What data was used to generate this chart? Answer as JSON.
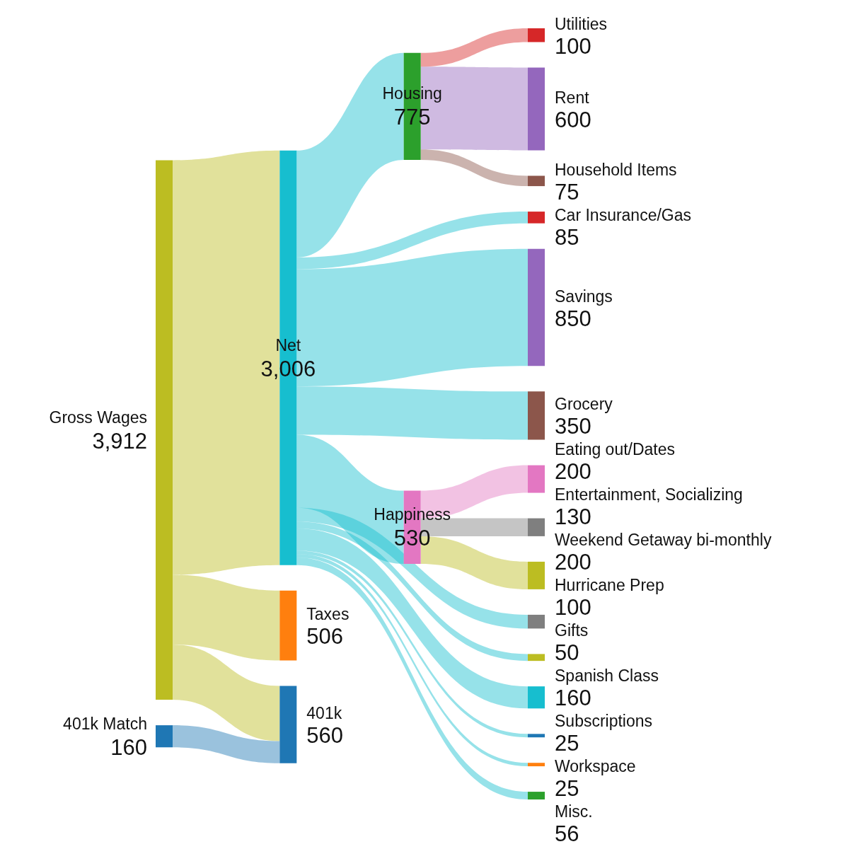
{
  "chart_data": {
    "type": "other",
    "categories": [
      "Gross Wages",
      "401k Match",
      "Net",
      "Taxes",
      "401k",
      "Housing",
      "Happiness",
      "Utilities",
      "Rent",
      "Household Items",
      "Car Insurance/Gas",
      "Savings",
      "Grocery",
      "Eating out/Dates",
      "Entertainment, Socializing",
      "Weekend Getaway bi-monthly",
      "Hurricane Prep",
      "Gifts",
      "Spanish Class",
      "Subscriptions",
      "Workspace",
      "Misc."
    ],
    "values": [
      3912,
      160,
      3006,
      506,
      560,
      775,
      530,
      100,
      600,
      75,
      85,
      850,
      350,
      200,
      130,
      200,
      100,
      50,
      160,
      25,
      25,
      56
    ],
    "value_labels": [
      "3,912",
      "160",
      "3,006",
      "506",
      "560",
      "775",
      "530",
      "100",
      "600",
      "75",
      "85",
      "850",
      "350",
      "200",
      "130",
      "200",
      "100",
      "50",
      "160",
      "25",
      "25",
      "56"
    ],
    "colors": [
      "#bcbd22",
      "#1f77b4",
      "#17becf",
      "#ff7f0e",
      "#1f77b4",
      "#2ca02c",
      "#e377c2",
      "#d62728",
      "#9467bd",
      "#8c564b",
      "#d62728",
      "#9467bd",
      "#8c564b",
      "#e377c2",
      "#7f7f7f",
      "#bcbd22",
      "#7f7f7f",
      "#bcbd22",
      "#17becf",
      "#1f77b4",
      "#ff7f0e",
      "#2ca02c"
    ]
  }
}
